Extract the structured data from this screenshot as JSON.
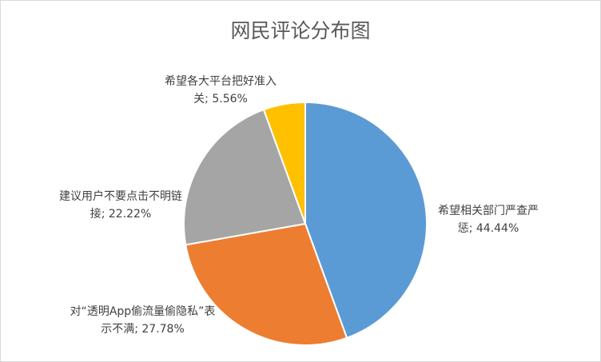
{
  "chart_data": {
    "type": "pie",
    "title": "网民评论分布图",
    "values": [
      44.44,
      27.78,
      22.22,
      5.56
    ],
    "value_labels": [
      "希望相关部门严查严惩; 44.44%",
      "对“透明App偷流量偷隐私”表示不满; 27.78%",
      "建议用户不要点击不明链接; 22.22%",
      "希望各大平台把好准入关; 5.56%"
    ],
    "colors": [
      "#5b9bd5",
      "#ed7d31",
      "#a5a5a5",
      "#ffc000"
    ]
  }
}
